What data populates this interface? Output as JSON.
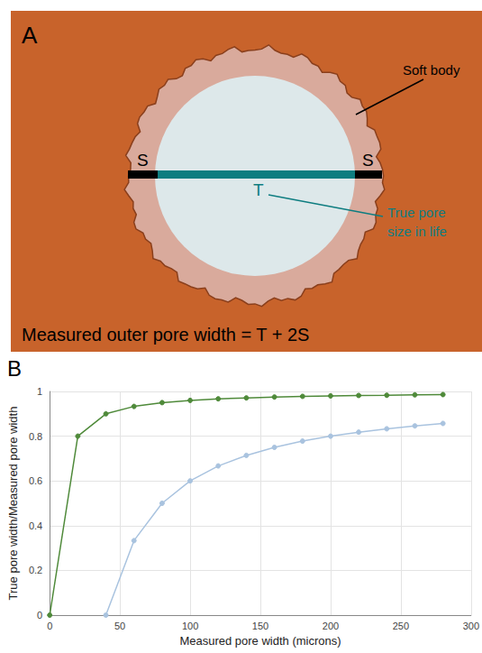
{
  "diagram": {
    "panel_label": "A",
    "labels": {
      "soft_body": "Soft body",
      "s_left": "S",
      "s_right": "S",
      "t": "T",
      "true_size": "True pore size in life",
      "formula": "Measured outer pore width = T + 2S"
    }
  },
  "chart_data": {
    "type": "line",
    "panel_label": "B",
    "x_label": "Measured pore width (microns)",
    "y_label": "True pore width/Measured pore width",
    "x": [
      0,
      20,
      40,
      60,
      80,
      100,
      120,
      140,
      160,
      180,
      200,
      220,
      240,
      260,
      280
    ],
    "series": [
      {
        "color": "#4f8a3a",
        "marker": "circle",
        "values": [
          0,
          0.8,
          0.9,
          0.933,
          0.95,
          0.96,
          0.967,
          0.971,
          0.975,
          0.978,
          0.98,
          0.982,
          0.983,
          0.985,
          0.986
        ]
      },
      {
        "color": "#a9c3df",
        "marker": "circle",
        "values": [
          null,
          null,
          0,
          0.333,
          0.5,
          0.6,
          0.667,
          0.714,
          0.75,
          0.778,
          0.8,
          0.818,
          0.833,
          0.846,
          0.857
        ]
      }
    ],
    "xlim": [
      0,
      300
    ],
    "xticks": [
      0,
      50,
      100,
      150,
      200,
      250,
      300
    ],
    "ylim": [
      0,
      1
    ],
    "yticks": [
      0,
      0.2,
      0.4,
      0.6,
      0.8,
      1
    ],
    "grid": true
  }
}
